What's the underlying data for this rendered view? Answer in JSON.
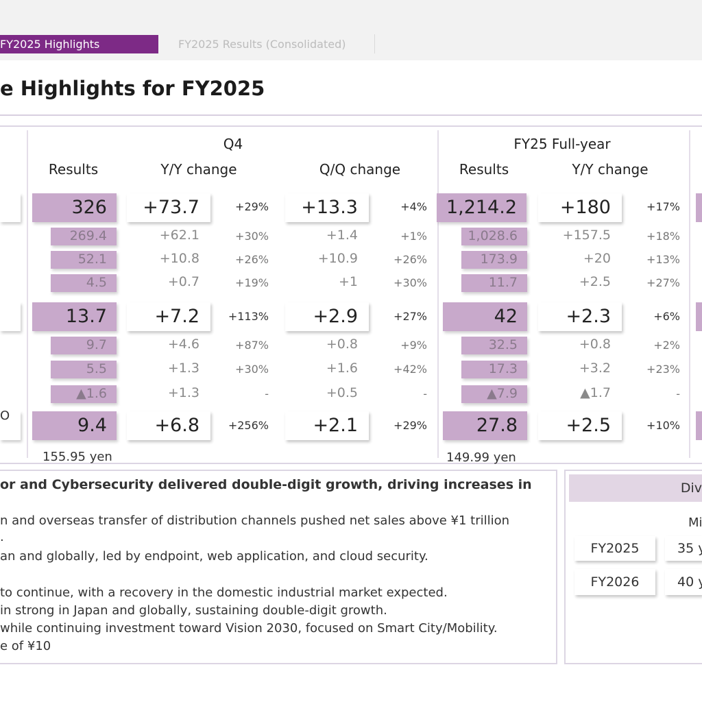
{
  "tabs": {
    "active": "FY2025 Highlights",
    "inactive": "FY2025 Results (Consolidated)"
  },
  "page_title": "e Highlights for FY2025",
  "headers": {
    "q4_group": "Q4",
    "fy_group": "FY25 Full-year",
    "results": "Results",
    "yy_change": "Y/Y change",
    "qq_change": "Q/Q change",
    "fy_results": "Results",
    "fy_yy_change": "Y/Y change"
  },
  "rows": [
    {
      "q4_results": "326",
      "q4_yy": "+73.7",
      "q4_yy_pct": "+29%",
      "q4_qq": "+13.3",
      "q4_qq_pct": "+4%",
      "fy_results": "1,214.2",
      "fy_yy": "+180",
      "fy_yy_pct": "+17%"
    },
    {
      "q4_results": "269.4",
      "q4_yy": "+62.1",
      "q4_yy_pct": "+30%",
      "q4_qq": "+1.4",
      "q4_qq_pct": "+1%",
      "fy_results": "1,028.6",
      "fy_yy": "+157.5",
      "fy_yy_pct": "+18%"
    },
    {
      "q4_results": "52.1",
      "q4_yy": "+10.8",
      "q4_yy_pct": "+26%",
      "q4_qq": "+10.9",
      "q4_qq_pct": "+26%",
      "fy_results": "173.9",
      "fy_yy": "+20",
      "fy_yy_pct": "+13%"
    },
    {
      "q4_results": "4.5",
      "q4_yy": "+0.7",
      "q4_yy_pct": "+19%",
      "q4_qq": "+1",
      "q4_qq_pct": "+30%",
      "fy_results": "11.7",
      "fy_yy": "+2.5",
      "fy_yy_pct": "+27%"
    },
    {
      "q4_results": "13.7",
      "q4_yy": "+7.2",
      "q4_yy_pct": "+113%",
      "q4_qq": "+2.9",
      "q4_qq_pct": "+27%",
      "fy_results": "42",
      "fy_yy": "+2.3",
      "fy_yy_pct": "+6%"
    },
    {
      "q4_results": "9.7",
      "q4_yy": "+4.6",
      "q4_yy_pct": "+87%",
      "q4_qq": "+0.8",
      "q4_qq_pct": "+9%",
      "fy_results": "32.5",
      "fy_yy": "+0.8",
      "fy_yy_pct": "+2%"
    },
    {
      "q4_results": "5.5",
      "q4_yy": "+1.3",
      "q4_yy_pct": "+30%",
      "q4_qq": "+1.6",
      "q4_qq_pct": "+42%",
      "fy_results": "17.3",
      "fy_yy": "+3.2",
      "fy_yy_pct": "+23%"
    },
    {
      "q4_results": "▲1.6",
      "q4_yy": "+1.3",
      "q4_yy_pct": "-",
      "q4_qq": "+0.5",
      "q4_qq_pct": "-",
      "fy_results": "▲7.9",
      "fy_yy": "▲1.7",
      "fy_yy_pct": "-"
    },
    {
      "q4_results": "9.4",
      "q4_yy": "+6.8",
      "q4_yy_pct": "+256%",
      "q4_qq": "+2.1",
      "q4_qq_pct": "+29%",
      "fy_results": "27.8",
      "fy_yy": "+2.5",
      "fy_yy_pct": "+10%"
    }
  ],
  "row_label_fragment": "O",
  "eps": {
    "q4": "155.95 yen",
    "fy": "149.99 yen"
  },
  "comments": {
    "bold_line": "or and Cybersecurity delivered double-digit growth, driving increases in",
    "lines": [
      "n and overseas transfer of distribution channels pushed net sales above ¥1 trillion",
      ".",
      "an and globally, led by endpoint, web application, and cloud security.",
      "to continue, with a recovery in the domestic industrial market expected.",
      "in strong in Japan and globally, sustaining double-digit growth.",
      "while continuing investment toward Vision 2030, focused on Smart City/Mobility.",
      "e of ¥10"
    ]
  },
  "dividends": {
    "header": "Div",
    "sub": "Mi",
    "rows": [
      {
        "year": "FY2025",
        "value": "35 y"
      },
      {
        "year": "FY2026",
        "value": "40 y"
      }
    ]
  }
}
